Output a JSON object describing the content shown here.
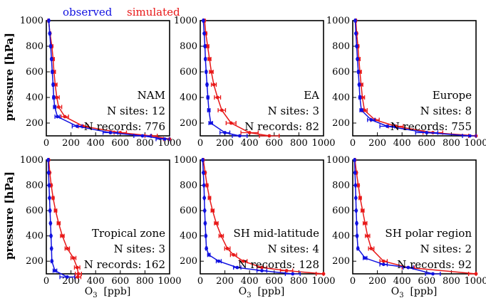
{
  "legend": {
    "observed": "observed",
    "simulated": "simulated"
  },
  "colors": {
    "observed": "#1010e0",
    "simulated": "#e81818"
  },
  "axes": {
    "ylabel": "pressure [hPa]",
    "xlabel_main": "O",
    "xlabel_sub": "3",
    "xlabel_unit": "[ppb]",
    "xlim": [
      0,
      1000
    ],
    "ylim": [
      1000,
      100
    ],
    "xticks": [
      0,
      200,
      400,
      600,
      800,
      1000
    ],
    "yticks": [
      200,
      400,
      600,
      800,
      1000
    ]
  },
  "chart_data": [
    {
      "type": "line",
      "region": "NAM",
      "sites_text": "N sites: 12",
      "records_text": "N records: 776",
      "series": [
        {
          "name": "observed",
          "y": [
            1000,
            900,
            800,
            700,
            600,
            500,
            400,
            325,
            250,
            175,
            125,
            100,
            75
          ],
          "x": [
            20,
            28,
            35,
            42,
            48,
            55,
            60,
            68,
            90,
            250,
            520,
            780,
            960
          ],
          "err": [
            5,
            5,
            5,
            5,
            6,
            6,
            8,
            10,
            20,
            40,
            60,
            70,
            70
          ]
        },
        {
          "name": "simulated",
          "y": [
            1000,
            900,
            800,
            700,
            600,
            500,
            400,
            325,
            250,
            175,
            125,
            100,
            75
          ],
          "x": [
            18,
            30,
            45,
            55,
            62,
            72,
            85,
            100,
            150,
            300,
            600,
            850,
            1000
          ],
          "err": [
            5,
            6,
            8,
            10,
            12,
            15,
            20,
            25,
            30,
            40,
            50,
            50,
            50
          ]
        }
      ]
    },
    {
      "type": "line",
      "region": "EA",
      "sites_text": "N sites: 3",
      "records_text": "N records: 82",
      "series": [
        {
          "name": "observed",
          "y": [
            1000,
            900,
            800,
            700,
            600,
            500,
            400,
            300,
            200,
            125,
            100
          ],
          "x": [
            25,
            32,
            38,
            42,
            48,
            55,
            62,
            70,
            85,
            200,
            320
          ],
          "err": [
            3,
            3,
            4,
            5,
            5,
            6,
            8,
            10,
            15,
            40,
            60
          ]
        },
        {
          "name": "simulated",
          "y": [
            1000,
            900,
            800,
            700,
            600,
            500,
            400,
            300,
            200,
            125,
            100
          ],
          "x": [
            35,
            45,
            60,
            75,
            90,
            110,
            140,
            175,
            250,
            400,
            560
          ],
          "err": [
            5,
            8,
            10,
            12,
            15,
            20,
            25,
            30,
            40,
            70,
            80
          ]
        }
      ]
    },
    {
      "type": "line",
      "region": "Europe",
      "sites_text": "N sites: 8",
      "records_text": "N records: 755",
      "series": [
        {
          "name": "observed",
          "y": [
            1000,
            900,
            800,
            700,
            600,
            500,
            400,
            300,
            225,
            175,
            125,
            100
          ],
          "x": [
            20,
            25,
            32,
            38,
            45,
            52,
            58,
            70,
            150,
            280,
            600,
            950
          ],
          "err": [
            3,
            3,
            4,
            4,
            5,
            5,
            8,
            12,
            30,
            60,
            90,
            60
          ]
        },
        {
          "name": "simulated",
          "y": [
            1000,
            900,
            800,
            700,
            600,
            500,
            400,
            300,
            225,
            175,
            125,
            100
          ],
          "x": [
            25,
            32,
            42,
            50,
            58,
            68,
            78,
            95,
            180,
            350,
            650,
            1000
          ],
          "err": [
            5,
            6,
            8,
            10,
            12,
            14,
            18,
            22,
            35,
            60,
            80,
            60
          ]
        }
      ]
    },
    {
      "type": "line",
      "region": "Tropical zone",
      "sites_text": "N sites: 3",
      "records_text": "N records: 162",
      "series": [
        {
          "name": "observed",
          "y": [
            1000,
            900,
            800,
            700,
            600,
            500,
            400,
            300,
            200,
            125,
            75
          ],
          "x": [
            15,
            18,
            22,
            26,
            30,
            34,
            38,
            42,
            45,
            70,
            170
          ],
          "err": [
            3,
            3,
            4,
            4,
            5,
            5,
            5,
            5,
            5,
            15,
            60
          ]
        },
        {
          "name": "simulated",
          "y": [
            1000,
            900,
            800,
            700,
            600,
            500,
            400,
            300,
            225,
            150,
            100,
            75
          ],
          "x": [
            20,
            28,
            40,
            55,
            75,
            100,
            130,
            170,
            220,
            250,
            260,
            255
          ],
          "err": [
            4,
            5,
            6,
            8,
            10,
            12,
            15,
            18,
            20,
            22,
            25,
            25
          ]
        }
      ]
    },
    {
      "type": "line",
      "region": "SH mid-latitude",
      "sites_text": "N sites: 4",
      "records_text": "N records: 128",
      "series": [
        {
          "name": "observed",
          "y": [
            1000,
            900,
            800,
            700,
            600,
            500,
            400,
            300,
            250,
            200,
            150,
            125,
            100
          ],
          "x": [
            20,
            25,
            30,
            33,
            36,
            40,
            45,
            50,
            70,
            150,
            300,
            500,
            750
          ],
          "err": [
            3,
            3,
            3,
            4,
            4,
            5,
            5,
            6,
            10,
            20,
            30,
            40,
            60
          ]
        },
        {
          "name": "simulated",
          "y": [
            1000,
            900,
            800,
            700,
            600,
            500,
            400,
            300,
            250,
            200,
            150,
            125,
            100
          ],
          "x": [
            25,
            40,
            55,
            75,
            100,
            130,
            170,
            220,
            270,
            350,
            500,
            700,
            1000
          ],
          "err": [
            4,
            6,
            8,
            10,
            12,
            15,
            18,
            22,
            25,
            30,
            40,
            50,
            60
          ]
        }
      ]
    },
    {
      "type": "line",
      "region": "SH polar region",
      "sites_text": "N sites: 2",
      "records_text": "N records: 92",
      "series": [
        {
          "name": "observed",
          "y": [
            1000,
            900,
            800,
            700,
            600,
            500,
            400,
            300,
            225,
            175,
            150,
            100
          ],
          "x": [
            15,
            18,
            22,
            25,
            28,
            32,
            35,
            42,
            100,
            250,
            450,
            650
          ],
          "err": [
            3,
            3,
            3,
            4,
            4,
            5,
            5,
            6,
            15,
            30,
            40,
            60
          ]
        },
        {
          "name": "simulated",
          "y": [
            1000,
            900,
            800,
            700,
            600,
            500,
            400,
            300,
            200,
            150,
            100
          ],
          "x": [
            18,
            30,
            45,
            60,
            80,
            100,
            120,
            150,
            250,
            450,
            1000
          ],
          "err": [
            4,
            6,
            8,
            10,
            12,
            15,
            18,
            22,
            30,
            50,
            60
          ]
        }
      ]
    }
  ]
}
